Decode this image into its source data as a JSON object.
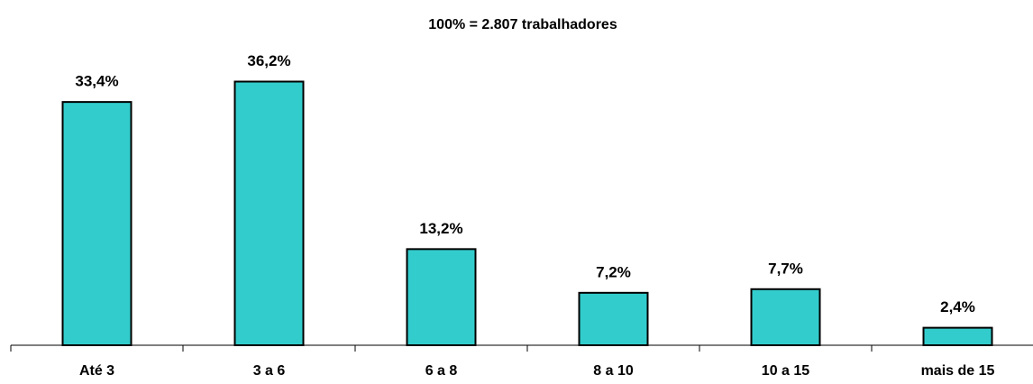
{
  "chart_data": {
    "type": "bar",
    "title": "100% = 2.807 trabalhadores",
    "categories": [
      "Até 3",
      "3 a 6",
      "6 a 8",
      "8 a 10",
      "10 a 15",
      "mais de 15"
    ],
    "values": [
      33.4,
      36.2,
      13.2,
      7.2,
      7.7,
      2.4
    ],
    "value_labels": [
      "33,4%",
      "36,2%",
      "13,2%",
      "7,2%",
      "7,7%",
      "2,4%"
    ],
    "color": "#33cccc"
  }
}
